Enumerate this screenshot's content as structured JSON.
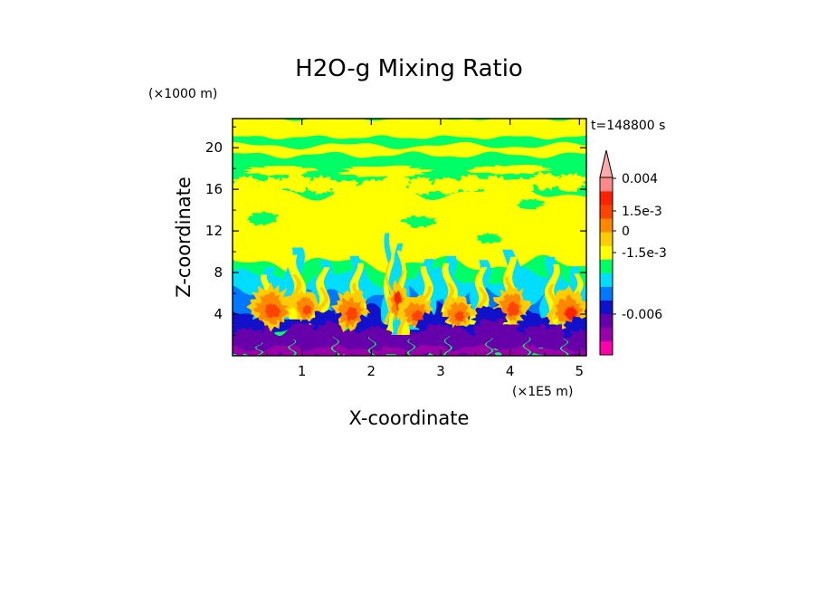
{
  "chart_data": {
    "type": "heatmap",
    "title": "H2O-g Mixing Ratio",
    "time_label": "t=148800 s",
    "xlabel": "X-coordinate",
    "ylabel": "Z-coordinate",
    "x_unit": "(×1E5 m)",
    "y_unit": "(×1000 m)",
    "x_ticks": [
      "1",
      "2",
      "3",
      "4",
      "5"
    ],
    "y_ticks": [
      "4",
      "8",
      "12",
      "16",
      "20"
    ],
    "xlim": [
      0,
      5.1
    ],
    "ylim": [
      0,
      22.8
    ],
    "colorbar": {
      "extend": "both",
      "labels": [
        {
          "text": "0.004",
          "value": 0.004
        },
        {
          "text": "1.5e-3",
          "value": 0.0015
        },
        {
          "text": "0",
          "value": 0
        },
        {
          "text": "-1.5e-3",
          "value": -0.0015
        },
        {
          "text": "-0.006",
          "value": -0.006
        }
      ],
      "bands": [
        {
          "color": "#ff00aa"
        },
        {
          "color": "#9900aa"
        },
        {
          "color": "#6600aa"
        },
        {
          "color": "#1111cc"
        },
        {
          "color": "#0077ff"
        },
        {
          "color": "#00ddff"
        },
        {
          "color": "#00ff66"
        },
        {
          "color": "#ffff00"
        },
        {
          "color": "#ffcc00"
        },
        {
          "color": "#ff8800"
        },
        {
          "color": "#ff4400"
        },
        {
          "color": "#ff2200"
        },
        {
          "color": "#ff8888"
        },
        {
          "color": "#ffaaaa"
        }
      ]
    }
  }
}
